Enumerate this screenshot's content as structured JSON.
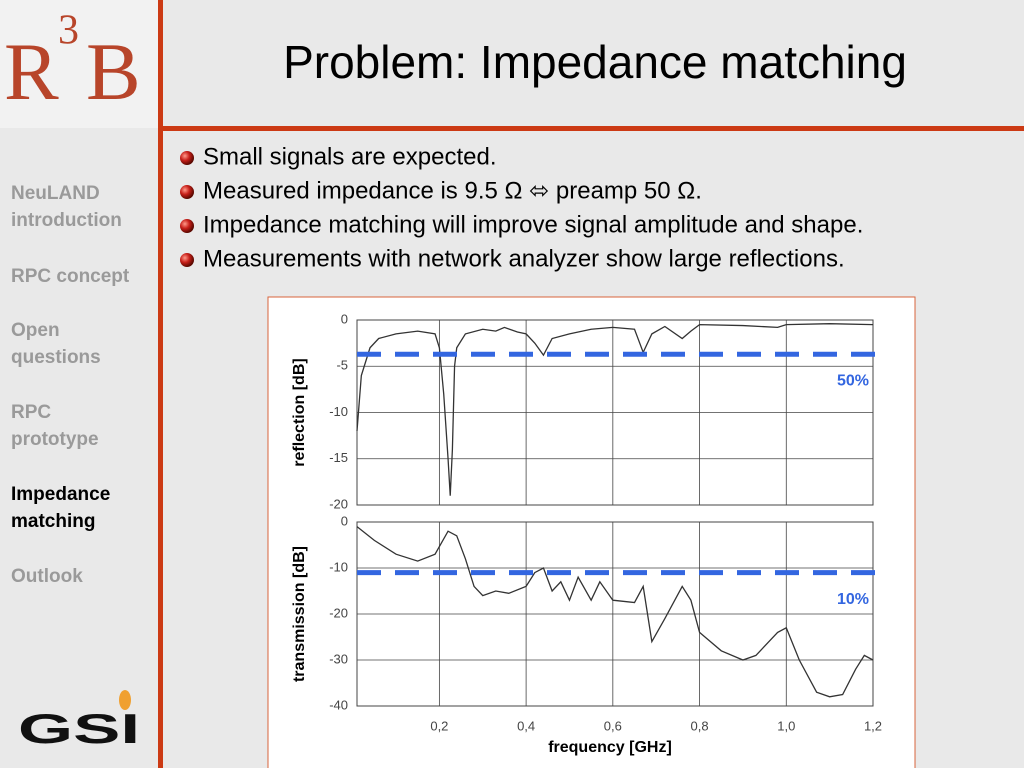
{
  "header": {
    "title": "Problem: Impedance matching"
  },
  "logos": {
    "r3b": [
      "R",
      "3",
      "B"
    ],
    "gsi": "GSI"
  },
  "nav": {
    "items": [
      [
        "NeuLAND",
        "introduction"
      ],
      [
        "RPC concept"
      ],
      [
        "Open",
        "questions"
      ],
      [
        "RPC",
        "prototype"
      ],
      [
        "Impedance",
        "matching"
      ],
      [
        "Outlook"
      ]
    ],
    "current": 4
  },
  "bullets": [
    "Small signals are expected.",
    "Measured impedance is 9.5 Ω ⬄ preamp 50 Ω.",
    "Impedance matching will improve signal amplitude and shape.",
    "Measurements with network analyzer show large reflections."
  ],
  "chart_data": [
    {
      "type": "line",
      "ylabel": "reflection [dB]",
      "color": "#333333",
      "x": [
        0.01,
        0.02,
        0.04,
        0.06,
        0.1,
        0.15,
        0.19,
        0.2,
        0.21,
        0.22,
        0.225,
        0.23,
        0.235,
        0.24,
        0.26,
        0.3,
        0.33,
        0.35,
        0.38,
        0.4,
        0.42,
        0.44,
        0.46,
        0.5,
        0.55,
        0.6,
        0.65,
        0.67,
        0.69,
        0.72,
        0.76,
        0.78,
        0.8,
        0.9,
        0.98,
        1.0,
        1.1,
        1.2
      ],
      "values": [
        -12,
        -6,
        -3,
        -2,
        -1.5,
        -1.2,
        -1.5,
        -3,
        -8,
        -15,
        -19,
        -14,
        -5,
        -3,
        -1.5,
        -1,
        -1.2,
        -0.8,
        -1.3,
        -1.5,
        -2.5,
        -3.8,
        -2,
        -1.5,
        -1,
        -0.8,
        -1,
        -3.5,
        -1.5,
        -0.7,
        -2,
        -1.2,
        -0.5,
        -0.6,
        -0.8,
        -0.5,
        -0.4,
        -0.5
      ],
      "xlim": [
        0.01,
        1.2
      ],
      "xticks": [
        0.2,
        0.4,
        0.6,
        0.8,
        1.0
      ],
      "ylim": [
        -20,
        0
      ],
      "yticks": [
        0,
        -5,
        -10,
        -15,
        -20
      ],
      "grid": true,
      "reference_line": {
        "value": -3.7,
        "label": "50%",
        "color": "#3366e0"
      }
    },
    {
      "type": "line",
      "ylabel": "transmission [dB]",
      "xlabel": "frequency [GHz]",
      "color": "#333333",
      "x": [
        0.01,
        0.05,
        0.1,
        0.15,
        0.19,
        0.22,
        0.24,
        0.26,
        0.28,
        0.3,
        0.33,
        0.36,
        0.4,
        0.42,
        0.44,
        0.46,
        0.48,
        0.5,
        0.52,
        0.55,
        0.57,
        0.6,
        0.65,
        0.67,
        0.69,
        0.72,
        0.76,
        0.78,
        0.8,
        0.85,
        0.9,
        0.93,
        0.98,
        1.0,
        1.03,
        1.07,
        1.1,
        1.13,
        1.16,
        1.18,
        1.2
      ],
      "values": [
        -1,
        -4,
        -7,
        -8.5,
        -7,
        -2,
        -3,
        -8,
        -14,
        -16,
        -15,
        -15.5,
        -14,
        -11,
        -10,
        -15,
        -13,
        -17,
        -12,
        -17,
        -13,
        -17,
        -17.5,
        -14,
        -26,
        -21,
        -14,
        -17,
        -24,
        -28,
        -30,
        -29,
        -24,
        -23,
        -30,
        -37,
        -38,
        -37.5,
        -32,
        -29,
        -30
      ],
      "xlim": [
        0.01,
        1.2
      ],
      "xticks": [
        {
          "value": 0.2,
          "label": "0,2"
        },
        {
          "value": 0.4,
          "label": "0,4"
        },
        {
          "value": 0.6,
          "label": "0,6"
        },
        {
          "value": 0.8,
          "label": "0,8"
        },
        {
          "value": 1.0,
          "label": "1,0"
        },
        {
          "value": 1.2,
          "label": "1,2"
        }
      ],
      "ylim": [
        -40,
        0
      ],
      "yticks": [
        0,
        -10,
        -20,
        -30,
        -40
      ],
      "grid": true,
      "reference_line": {
        "value": -11,
        "label": "10%",
        "color": "#3366e0"
      }
    }
  ]
}
